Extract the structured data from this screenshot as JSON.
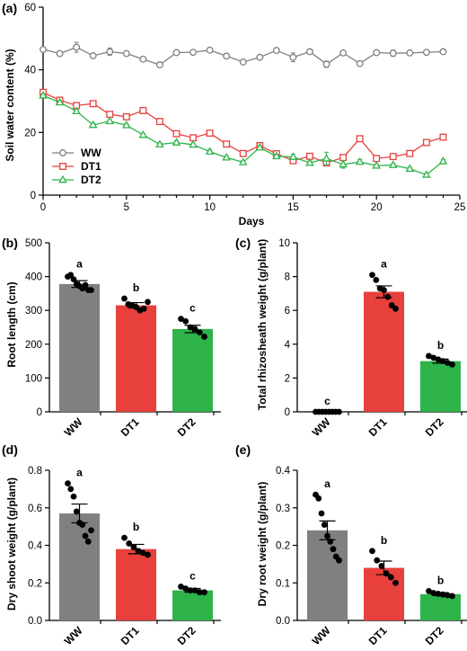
{
  "panel_labels": [
    "(a)",
    "(b)",
    "(c)",
    "(d)",
    "(e)"
  ],
  "chart_data": [
    {
      "panel": "(a)",
      "type": "line",
      "xlabel": "Days",
      "ylabel": "Soil water content (%)",
      "xlim": [
        0,
        25
      ],
      "ylim": [
        0,
        60
      ],
      "xticks": [
        0,
        5,
        10,
        15,
        20,
        25
      ],
      "yticks": [
        0,
        20,
        40,
        60
      ],
      "legend_position": "lower-left",
      "x": [
        0,
        1,
        2,
        3,
        4,
        5,
        6,
        7,
        8,
        9,
        10,
        11,
        12,
        13,
        14,
        15,
        16,
        17,
        18,
        19,
        20,
        21,
        22,
        23,
        24
      ],
      "series": [
        {
          "name": "WW",
          "marker": "circle",
          "color": "#808080",
          "values": [
            46.5,
            45.2,
            47.2,
            44.5,
            45.8,
            45.2,
            43.4,
            41.6,
            45.5,
            45.6,
            46.3,
            44.4,
            42.5,
            44.0,
            46.2,
            44.0,
            45.8,
            41.8,
            45.4,
            42.0,
            45.5,
            45.3,
            45.4,
            45.6,
            45.8
          ],
          "errors": [
            0.5,
            0.5,
            1.6,
            0.5,
            1.2,
            0.6,
            0.5,
            0.6,
            0.5,
            0.5,
            0.5,
            0.5,
            0.5,
            0.5,
            0.8,
            1.4,
            0.6,
            1.0,
            0.6,
            0.5,
            0.5,
            1.0,
            0.6,
            0.5,
            0.5
          ]
        },
        {
          "name": "DT1",
          "marker": "square",
          "color": "#e8403c",
          "values": [
            32.8,
            30.3,
            28.6,
            29.2,
            25.8,
            25.0,
            27.0,
            23.5,
            19.6,
            18.3,
            19.8,
            16.3,
            13.3,
            15.8,
            13.2,
            11.0,
            12.4,
            10.3,
            12.0,
            18.0,
            11.7,
            12.3,
            13.3,
            16.8,
            18.5
          ],
          "errors": [
            0.5,
            0.5,
            0.5,
            0.5,
            0.5,
            0.5,
            0.5,
            0.5,
            0.5,
            0.5,
            0.5,
            0.5,
            0.5,
            0.6,
            0.5,
            0.8,
            0.5,
            0.8,
            0.6,
            0.5,
            0.5,
            0.5,
            0.5,
            0.5,
            0.5
          ]
        },
        {
          "name": "DT2",
          "marker": "triangle",
          "color": "#2eb34a",
          "values": [
            31.8,
            29.6,
            26.8,
            22.4,
            23.6,
            22.3,
            19.2,
            16.2,
            16.8,
            16.1,
            13.9,
            12.0,
            10.5,
            15.2,
            12.4,
            12.2,
            10.3,
            11.7,
            9.8,
            10.6,
            9.4,
            9.6,
            8.4,
            6.5,
            10.8
          ],
          "errors": [
            0.5,
            0.5,
            0.5,
            0.5,
            0.5,
            0.5,
            0.5,
            0.5,
            0.5,
            0.5,
            0.5,
            0.5,
            0.5,
            0.6,
            0.6,
            0.8,
            0.6,
            2.0,
            1.2,
            0.7,
            0.5,
            0.5,
            0.5,
            0.5,
            0.5
          ]
        }
      ]
    },
    {
      "panel": "(b)",
      "type": "bar",
      "ylabel": "Root length (cm)",
      "ylim": [
        0,
        500
      ],
      "yticks": [
        0,
        100,
        200,
        300,
        400,
        500
      ],
      "categories": [
        "WW",
        "DT1",
        "DT2"
      ],
      "colors": [
        "#808080",
        "#e8403c",
        "#2eb34a"
      ],
      "values": [
        378,
        315,
        245
      ],
      "errors": [
        10,
        8,
        11
      ],
      "significance": [
        "a",
        "b",
        "c"
      ],
      "points": [
        [
          400,
          405,
          392,
          378,
          372,
          365,
          375,
          360,
          360
        ],
        [
          335,
          318,
          315,
          310,
          300,
          305,
          325
        ],
        [
          275,
          268,
          250,
          245,
          235,
          222
        ]
      ]
    },
    {
      "panel": "(c)",
      "type": "bar",
      "ylabel": "Total rhizosheath weight (g/plant)",
      "ylim": [
        0,
        10
      ],
      "yticks": [
        0,
        2,
        4,
        6,
        8,
        10
      ],
      "categories": [
        "WW",
        "DT1",
        "DT2"
      ],
      "colors": [
        "#808080",
        "#e8403c",
        "#2eb34a"
      ],
      "values": [
        0.0,
        7.1,
        3.0
      ],
      "errors": [
        0.0,
        0.35,
        0.12
      ],
      "significance": [
        "c",
        "a",
        "b"
      ],
      "points": [
        [
          0,
          0,
          0,
          0,
          0,
          0,
          0,
          0
        ],
        [
          8.1,
          7.8,
          7.3,
          7.2,
          6.8,
          6.3,
          6.1
        ],
        [
          3.3,
          3.2,
          3.1,
          3.0,
          2.9,
          2.8
        ]
      ]
    },
    {
      "panel": "(d)",
      "type": "bar",
      "ylabel": "Dry shoot weight (g/plant)",
      "ylim": [
        0,
        0.8
      ],
      "yticks": [
        0.0,
        0.2,
        0.4,
        0.6,
        0.8
      ],
      "categories": [
        "WW",
        "DT1",
        "DT2"
      ],
      "colors": [
        "#808080",
        "#e8403c",
        "#2eb34a"
      ],
      "values": [
        0.57,
        0.38,
        0.16
      ],
      "errors": [
        0.05,
        0.025,
        0.01
      ],
      "significance": [
        "a",
        "b",
        "c"
      ],
      "points": [
        [
          0.73,
          0.7,
          0.66,
          0.58,
          0.52,
          0.51,
          0.45,
          0.42,
          0.48
        ],
        [
          0.44,
          0.41,
          0.39,
          0.37,
          0.36,
          0.35
        ],
        [
          0.18,
          0.17,
          0.16,
          0.16,
          0.15,
          0.15
        ]
      ]
    },
    {
      "panel": "(e)",
      "type": "bar",
      "ylabel": "Dry root weight (g/plant)",
      "ylim": [
        0,
        0.4
      ],
      "yticks": [
        0.0,
        0.1,
        0.2,
        0.3,
        0.4
      ],
      "categories": [
        "WW",
        "DT1",
        "DT2"
      ],
      "colors": [
        "#808080",
        "#e8403c",
        "#2eb34a"
      ],
      "values": [
        0.24,
        0.14,
        0.07
      ],
      "errors": [
        0.025,
        0.018,
        0.004
      ],
      "significance": [
        "a",
        "b",
        "b"
      ],
      "points": [
        [
          0.335,
          0.325,
          0.285,
          0.255,
          0.225,
          0.21,
          0.19,
          0.17,
          0.16
        ],
        [
          0.185,
          0.16,
          0.145,
          0.125,
          0.115,
          0.1
        ],
        [
          0.078,
          0.073,
          0.071,
          0.069,
          0.067,
          0.065
        ]
      ]
    }
  ]
}
